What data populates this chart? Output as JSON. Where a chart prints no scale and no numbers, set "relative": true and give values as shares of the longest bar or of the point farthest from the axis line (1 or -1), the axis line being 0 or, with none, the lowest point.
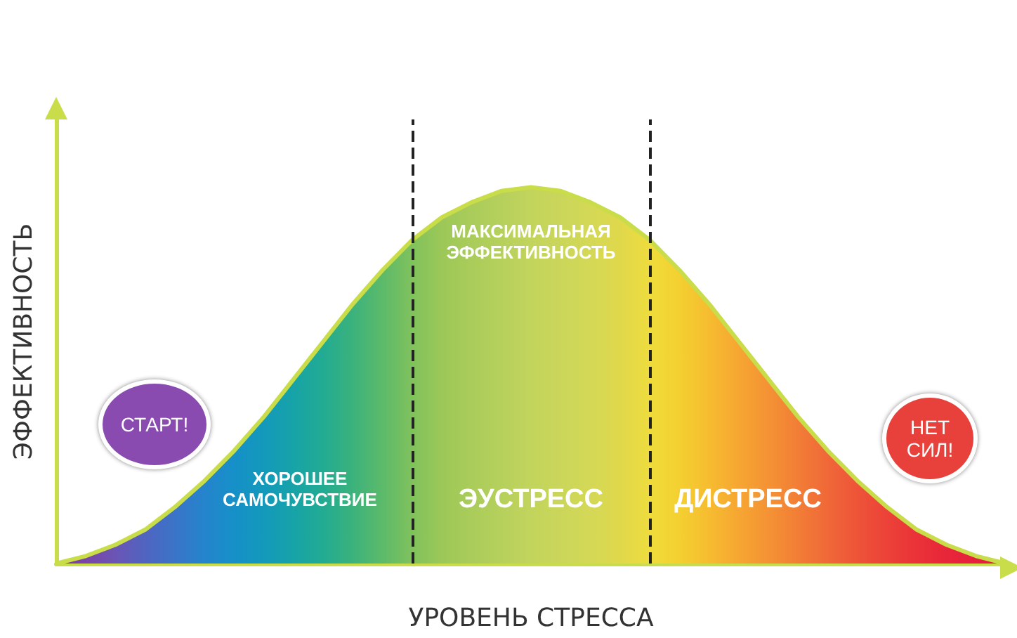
{
  "chart_data": {
    "type": "area",
    "relative": true,
    "xlabel": "УРОВЕНЬ СТРЕССА",
    "ylabel": "ЭФФЕКТИВНОСТЬ",
    "categories": [
      null,
      null,
      null,
      null,
      null,
      null,
      null,
      null,
      null,
      null,
      null,
      null,
      null,
      null,
      null,
      null,
      null,
      null,
      null,
      null,
      null,
      null,
      null,
      null,
      null,
      null,
      null,
      null,
      null,
      null,
      null,
      null,
      null
    ],
    "series": [
      {
        "color": "#c9dc4a",
        "values": [
          0.0,
          0.02,
          0.05,
          0.09,
          0.15,
          0.22,
          0.3,
          0.39,
          0.49,
          0.59,
          0.69,
          0.78,
          0.86,
          0.92,
          0.96,
          0.99,
          1.0,
          0.99,
          0.96,
          0.92,
          0.86,
          0.78,
          0.69,
          0.59,
          0.49,
          0.39,
          0.3,
          0.22,
          0.15,
          0.09,
          0.05,
          0.02,
          0.0
        ],
        "colors": [
          "#7d3c98",
          "#7a45a8",
          "#6a55b5",
          "#5064c0",
          "#3a74c8",
          "#2484cc",
          "#1690c8",
          "#1399bb",
          "#17a3a8",
          "#22ab92",
          "#3cb27c",
          "#5cba6a",
          "#80c25c",
          "#9cc858",
          "#aacc5a",
          "#b6d05c",
          "#c2d45c",
          "#cad65a",
          "#d4d856",
          "#e0d84c",
          "#eedc3c",
          "#f4d030",
          "#f6bc30",
          "#f6a632",
          "#f49234",
          "#f27e36",
          "#f06838",
          "#ee5438",
          "#ec4238",
          "#ea3238",
          "#e8263a",
          "#e61f3c",
          "#e41c3e"
        ]
      }
    ],
    "annotations": [
      "МАКСИМАЛЬНАЯ ЭФФЕКТИВНОСТЬ",
      "ХОРОШЕЕ САМОЧУВСТВИЕ",
      "ЭУСТРЕСС",
      "ДИСТРЕСС",
      "СТАРТ!",
      "НЕТ СИЛ!"
    ]
  }
}
